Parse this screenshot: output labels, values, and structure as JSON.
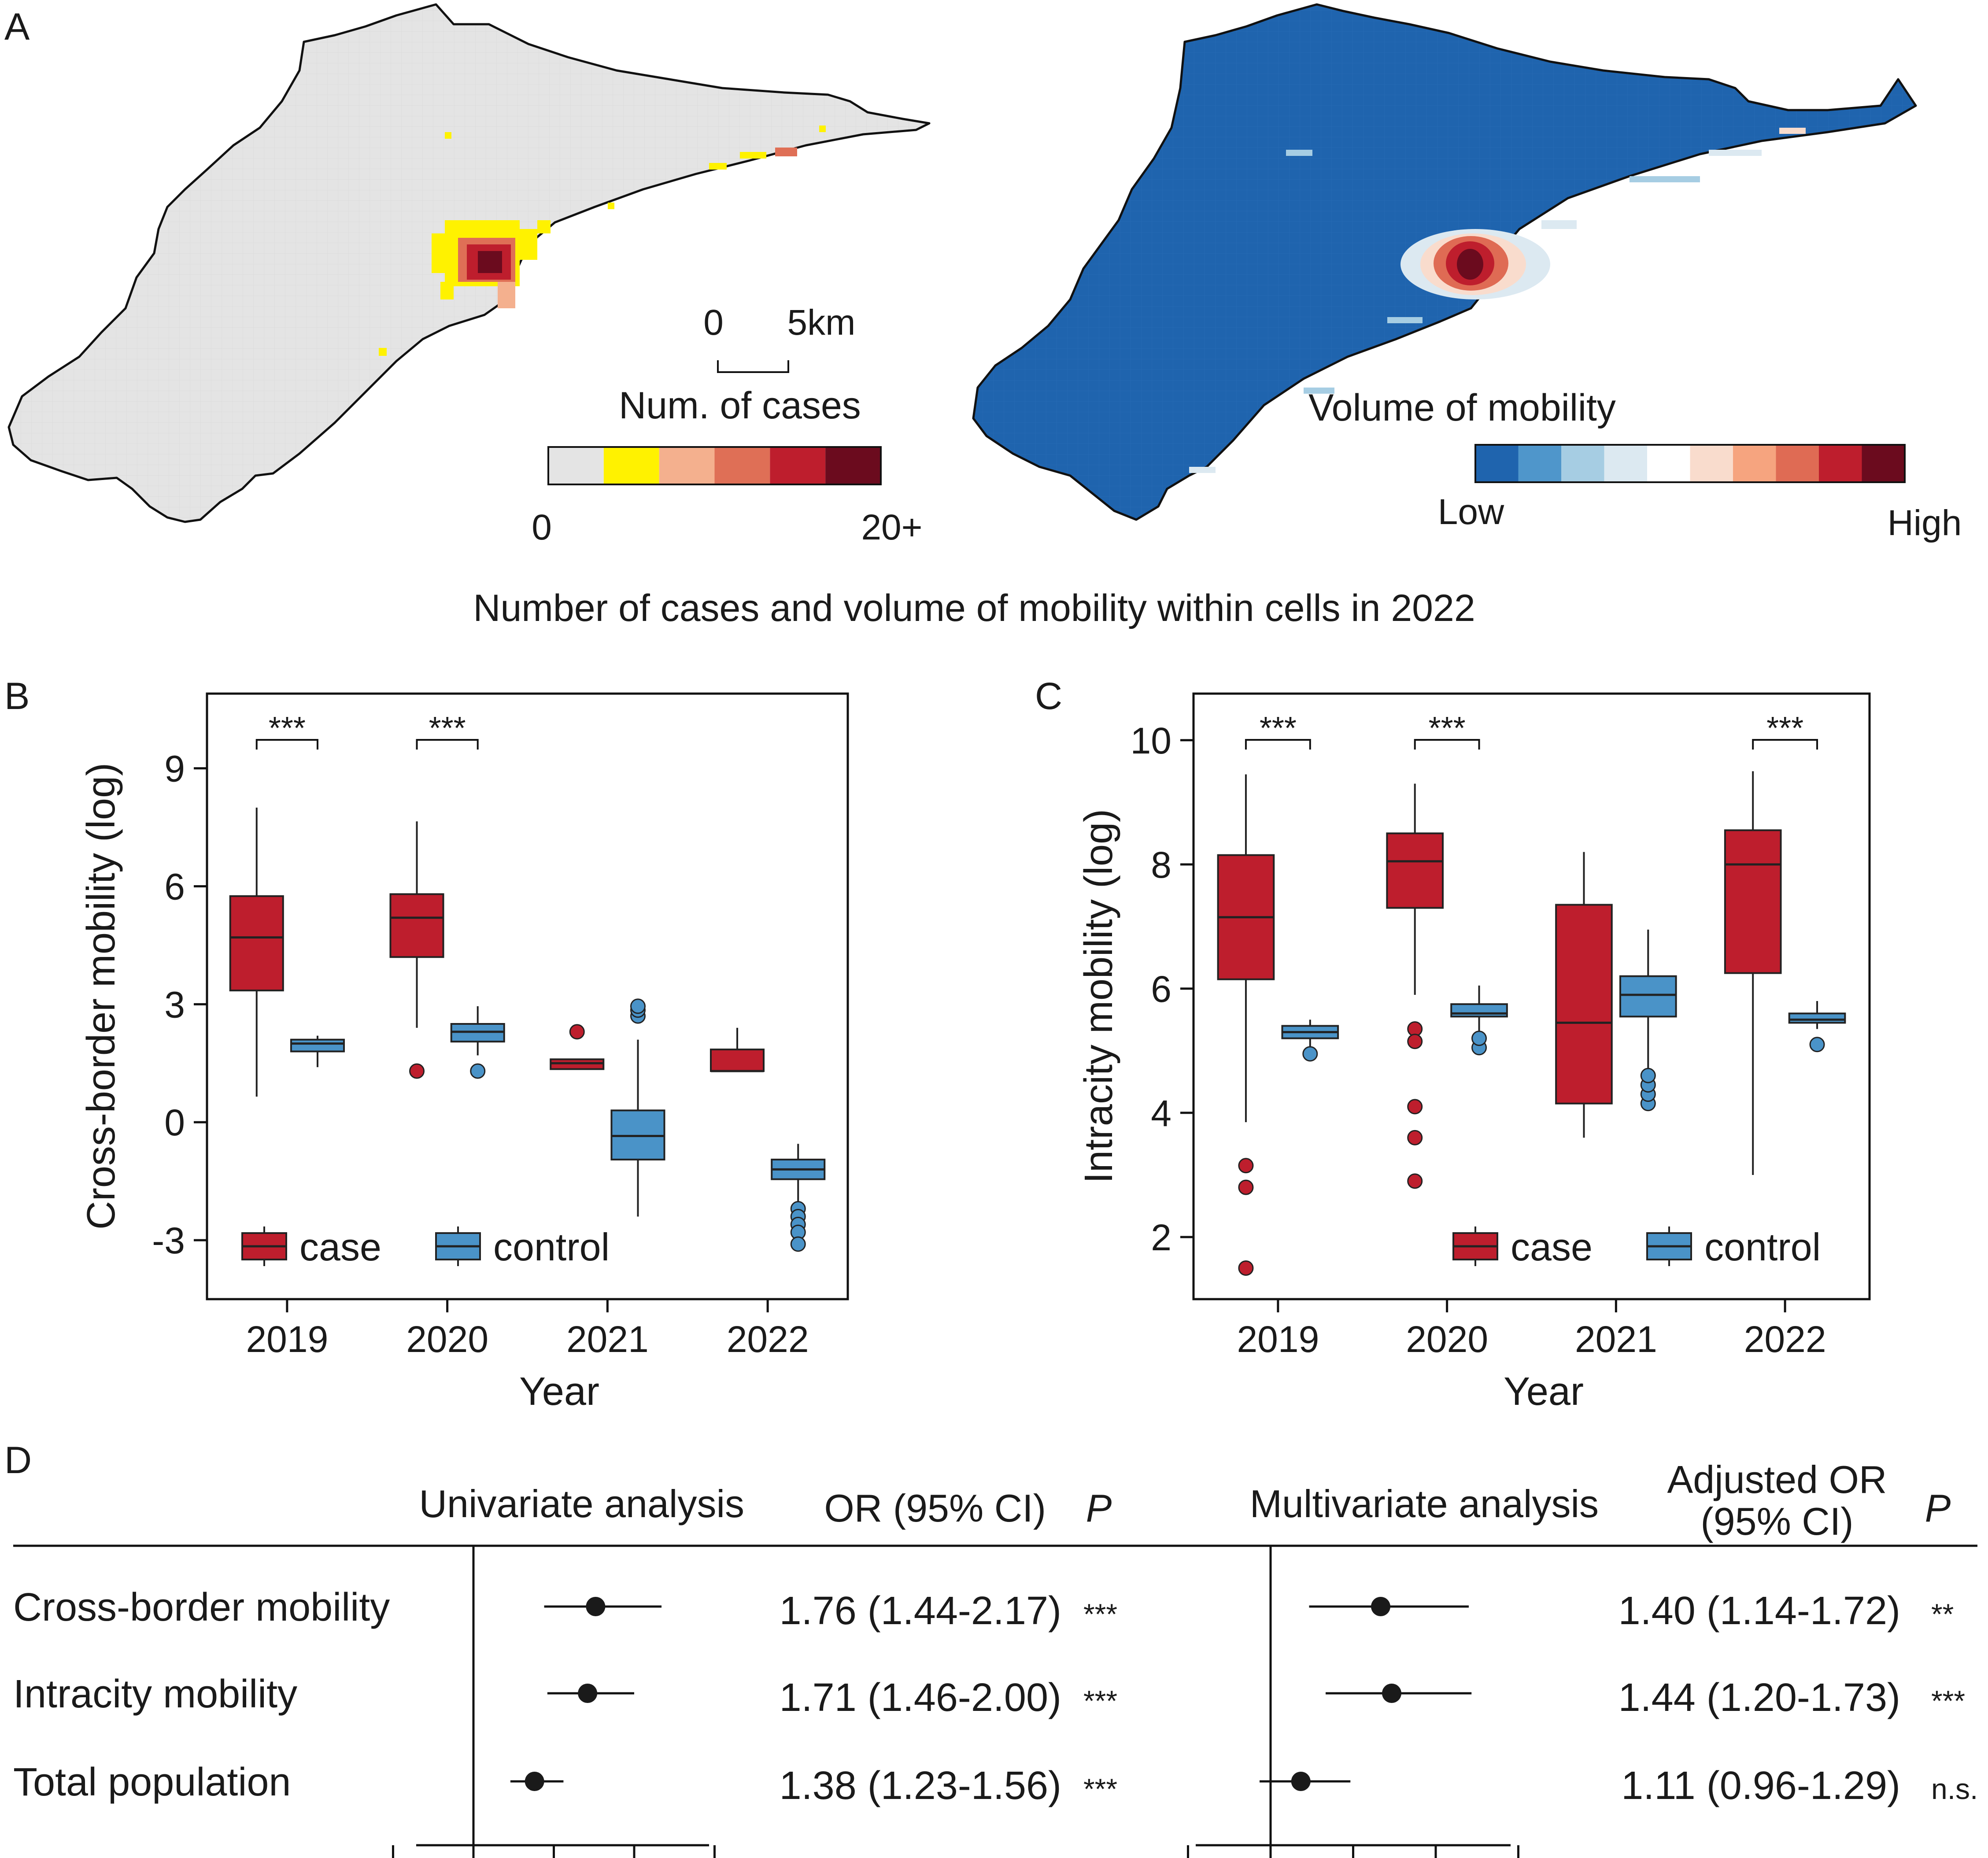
{
  "colors": {
    "case": "#be1e2d",
    "control": "#4a93c8",
    "map_gray": "#e4e4e4",
    "map_blue": "#1f64ae",
    "cases_scale": [
      "#e4e4e4",
      "#fff200",
      "#f4b08e",
      "#df6f56",
      "#be1e2d",
      "#6b0b1e"
    ],
    "mobility_scale": [
      "#1f64ae",
      "#4f96cb",
      "#a6cde3",
      "#dce9f1",
      "#ffffff",
      "#f9dccd",
      "#f6a47f",
      "#df6b54",
      "#be1e2d",
      "#6b0b1e"
    ]
  },
  "panel_a": {
    "letter": "A",
    "scalebar": {
      "zero": "0",
      "dist": "5km"
    },
    "cases_legend": {
      "title": "Num. of cases",
      "min": "0",
      "max": "20+"
    },
    "mobility_legend": {
      "title": "Volume of mobility",
      "low": "Low",
      "high": "High"
    },
    "caption": "Number of cases and volume of mobility within cells in 2022"
  },
  "chart_data": [
    {
      "panel": "B",
      "type": "box",
      "xlabel": "Year",
      "ylabel": "Cross-border mobility (log)",
      "ylim": [
        -4.5,
        10.9
      ],
      "yticks": [
        -3,
        0,
        3,
        6,
        9
      ],
      "ytick_labels": [
        "-3",
        "0",
        "3",
        "6",
        "9"
      ],
      "categories": [
        "2019",
        "2020",
        "2021",
        "2022"
      ],
      "legend": {
        "position": "bottom-left",
        "entries": [
          "case",
          "control"
        ]
      },
      "significance": [
        "***",
        "***",
        "",
        ""
      ],
      "series": [
        {
          "name": "case",
          "boxes": [
            {
              "low": 0.65,
              "q1": 3.35,
              "median": 4.7,
              "q3": 5.75,
              "high": 8.0,
              "outliers": []
            },
            {
              "low": 2.4,
              "q1": 4.2,
              "median": 5.2,
              "q3": 5.8,
              "high": 7.65,
              "outliers": [
                1.3
              ]
            },
            {
              "low": 1.35,
              "q1": 1.35,
              "median": 1.5,
              "q3": 1.6,
              "high": 1.6,
              "outliers": [
                2.3
              ]
            },
            {
              "low": 1.3,
              "q1": 1.3,
              "median": 1.3,
              "q3": 1.85,
              "high": 2.4,
              "outliers": []
            }
          ]
        },
        {
          "name": "control",
          "boxes": [
            {
              "low": 1.4,
              "q1": 1.8,
              "median": 2.0,
              "q3": 2.1,
              "high": 2.2,
              "outliers": []
            },
            {
              "low": 1.7,
              "q1": 2.05,
              "median": 2.3,
              "q3": 2.5,
              "high": 2.95,
              "outliers": [
                1.3
              ]
            },
            {
              "low": -2.4,
              "q1": -0.95,
              "median": -0.35,
              "q3": 0.3,
              "high": 2.1,
              "outliers": [
                2.7,
                2.85,
                2.95
              ]
            },
            {
              "low": -2.1,
              "q1": -1.45,
              "median": -1.2,
              "q3": -0.95,
              "high": -0.55,
              "outliers": [
                -2.2,
                -2.4,
                -2.6,
                -2.8,
                -3.1
              ]
            }
          ]
        }
      ]
    },
    {
      "panel": "C",
      "type": "box",
      "xlabel": "Year",
      "ylabel": "Intracity mobility (log)",
      "ylim": [
        1.0,
        10.75
      ],
      "yticks": [
        2,
        4,
        6,
        8,
        10
      ],
      "ytick_labels": [
        "2",
        "4",
        "6",
        "8",
        "10"
      ],
      "categories": [
        "2019",
        "2020",
        "2021",
        "2022"
      ],
      "legend": {
        "position": "bottom-right",
        "entries": [
          "case",
          "control"
        ]
      },
      "significance": [
        "***",
        "***",
        "",
        "***"
      ],
      "series": [
        {
          "name": "case",
          "boxes": [
            {
              "low": 3.85,
              "q1": 6.15,
              "median": 7.15,
              "q3": 8.15,
              "high": 9.45,
              "outliers": [
                3.15,
                2.8,
                1.5
              ]
            },
            {
              "low": 5.9,
              "q1": 7.3,
              "median": 8.05,
              "q3": 8.5,
              "high": 9.3,
              "outliers": [
                5.35,
                5.15,
                4.1,
                3.6,
                2.9
              ]
            },
            {
              "low": 3.6,
              "q1": 4.15,
              "median": 5.45,
              "q3": 7.35,
              "high": 8.2,
              "outliers": []
            },
            {
              "low": 3.0,
              "q1": 6.25,
              "median": 8.0,
              "q3": 8.55,
              "high": 9.5,
              "outliers": []
            }
          ]
        },
        {
          "name": "control",
          "boxes": [
            {
              "low": 5.05,
              "q1": 5.2,
              "median": 5.3,
              "q3": 5.4,
              "high": 5.5,
              "outliers": [
                4.95
              ]
            },
            {
              "low": 5.3,
              "q1": 5.55,
              "median": 5.6,
              "q3": 5.75,
              "high": 6.05,
              "outliers": [
                5.05,
                5.2
              ]
            },
            {
              "low": 4.7,
              "q1": 5.55,
              "median": 5.9,
              "q3": 6.2,
              "high": 6.95,
              "outliers": [
                4.15,
                4.3,
                4.45,
                4.6
              ]
            },
            {
              "low": 5.35,
              "q1": 5.45,
              "median": 5.5,
              "q3": 5.6,
              "high": 5.8,
              "outliers": [
                5.1
              ]
            }
          ]
        }
      ]
    },
    {
      "panel": "D",
      "type": "forest",
      "headers": {
        "uni_title": "Univariate analysis",
        "uni_or": "OR (95% CI)",
        "p": "P",
        "multi_title": "Multivariate analysis",
        "multi_or_line1": "Adjusted OR",
        "multi_or_line2": "(95% CI)"
      },
      "rows": [
        {
          "label": "Cross-border mobility",
          "uni": {
            "or": 1.76,
            "lo": 1.44,
            "hi": 2.17,
            "text": "1.76 (1.44-2.17)",
            "p": "***"
          },
          "multi": {
            "or": 1.4,
            "lo": 1.14,
            "hi": 1.72,
            "text": "1.40 (1.14-1.72)",
            "p": "**"
          }
        },
        {
          "label": "Intracity mobility",
          "uni": {
            "or": 1.71,
            "lo": 1.46,
            "hi": 2.0,
            "text": "1.71 (1.46-2.00)",
            "p": "***"
          },
          "multi": {
            "or": 1.44,
            "lo": 1.2,
            "hi": 1.73,
            "text": "1.44 (1.20-1.73)",
            "p": "***"
          }
        },
        {
          "label": "Total population",
          "uni": {
            "or": 1.38,
            "lo": 1.23,
            "hi": 1.56,
            "text": "1.38 (1.23-1.56)",
            "p": "***"
          },
          "multi": {
            "or": 1.11,
            "lo": 0.96,
            "hi": 1.29,
            "text": "1.11 (0.96-1.29)",
            "p": "n.s."
          }
        }
      ]
    }
  ]
}
